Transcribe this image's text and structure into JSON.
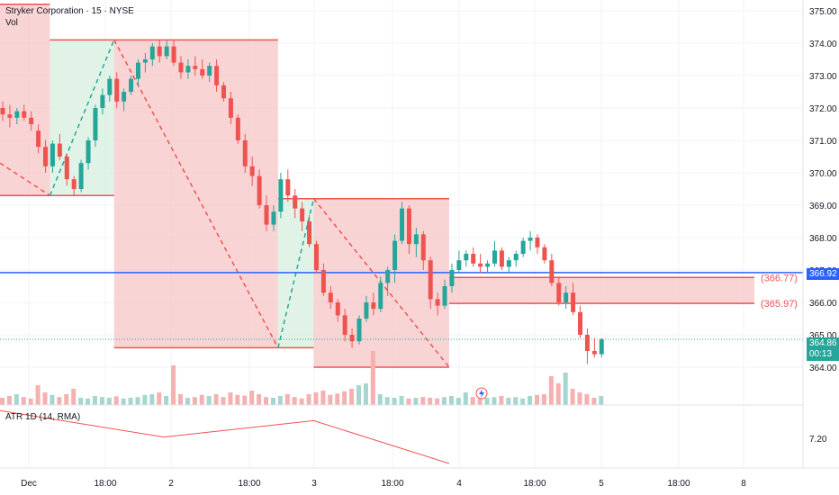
{
  "header": {
    "symbol": "Stryker Corporation",
    "interval": "15",
    "exchange": "NYSE",
    "vol_label": "Vol"
  },
  "indicator": {
    "atr_label": "ATR",
    "atr_params": "1D (14, RMA)",
    "atr_tick": "7.20"
  },
  "price_axis": {
    "ticks": [
      "375.00",
      "374.00",
      "373.00",
      "372.00",
      "371.00",
      "370.00",
      "369.00",
      "368.00",
      "367.00",
      "366.00",
      "365.00",
      "364.00"
    ],
    "current_price": "364.86",
    "countdown": "00:13",
    "hline_price": "366.92"
  },
  "time_axis": {
    "ticks": [
      "Dec",
      "18:00",
      "2",
      "18:00",
      "3",
      "18:00",
      "4",
      "18:00",
      "5",
      "18:00",
      "8"
    ]
  },
  "brackets": {
    "upper": "(366.77)",
    "lower": "(365.97)"
  },
  "colors": {
    "up": "#26a69a",
    "down": "#ef5350",
    "zone_red": "#f7c5c7",
    "zone_green": "#d6efdd",
    "hline": "#2962ff",
    "vol_up": "#a5d6cf",
    "vol_down": "#f5b0b0",
    "current_tag": "#26a69a"
  },
  "chart_data": {
    "type": "candlestick",
    "title": "Stryker Corporation · 15 · NYSE",
    "ylim": [
      363.3,
      375.2
    ],
    "series": [
      {
        "name": "price",
        "ohlc": [
          [
            372.0,
            372.2,
            371.6,
            371.8
          ],
          [
            371.8,
            372.1,
            371.4,
            371.7
          ],
          [
            371.7,
            372.0,
            371.5,
            371.9
          ],
          [
            371.9,
            372.1,
            371.6,
            371.7
          ],
          [
            371.7,
            371.9,
            371.3,
            371.5
          ],
          [
            371.3,
            371.5,
            370.6,
            370.8
          ],
          [
            370.8,
            371.0,
            370.0,
            370.2
          ],
          [
            370.2,
            371.0,
            370.0,
            370.9
          ],
          [
            370.9,
            371.2,
            370.4,
            370.5
          ],
          [
            370.5,
            370.6,
            369.6,
            369.8
          ],
          [
            369.8,
            369.9,
            369.3,
            369.5
          ],
          [
            369.5,
            370.4,
            369.4,
            370.3
          ],
          [
            370.3,
            371.1,
            370.1,
            371.0
          ],
          [
            371.0,
            372.1,
            370.8,
            372.0
          ],
          [
            372.0,
            372.6,
            371.8,
            372.4
          ],
          [
            372.4,
            373.0,
            372.2,
            372.9
          ],
          [
            372.9,
            373.1,
            372.0,
            372.2
          ],
          [
            372.2,
            372.6,
            371.9,
            372.5
          ],
          [
            372.5,
            373.0,
            372.4,
            372.9
          ],
          [
            372.9,
            373.5,
            372.7,
            373.4
          ],
          [
            373.4,
            373.7,
            373.1,
            373.5
          ],
          [
            373.5,
            374.0,
            373.3,
            373.9
          ],
          [
            373.9,
            374.1,
            373.4,
            373.6
          ],
          [
            373.6,
            374.1,
            373.5,
            373.9
          ],
          [
            373.9,
            374.1,
            373.3,
            373.4
          ],
          [
            373.4,
            373.6,
            372.9,
            373.1
          ],
          [
            373.1,
            373.5,
            372.9,
            373.3
          ],
          [
            373.3,
            373.6,
            373.0,
            373.2
          ],
          [
            373.2,
            373.5,
            372.9,
            373.0
          ],
          [
            373.0,
            373.4,
            372.8,
            373.3
          ],
          [
            373.3,
            373.5,
            372.5,
            372.7
          ],
          [
            372.7,
            372.8,
            372.2,
            372.3
          ],
          [
            372.3,
            372.5,
            371.5,
            371.7
          ],
          [
            371.7,
            371.8,
            370.9,
            371.0
          ],
          [
            371.0,
            371.2,
            370.0,
            370.2
          ],
          [
            370.2,
            370.5,
            369.6,
            369.9
          ],
          [
            369.9,
            370.1,
            368.9,
            369.0
          ],
          [
            369.0,
            369.3,
            368.2,
            368.4
          ],
          [
            368.4,
            369.0,
            368.2,
            368.8
          ],
          [
            368.8,
            370.0,
            368.6,
            369.8
          ],
          [
            369.8,
            370.1,
            369.1,
            369.3
          ],
          [
            369.3,
            369.5,
            368.6,
            368.9
          ],
          [
            368.9,
            369.1,
            368.2,
            368.5
          ],
          [
            368.5,
            368.7,
            367.7,
            367.8
          ],
          [
            367.8,
            367.9,
            366.9,
            367.0
          ],
          [
            367.0,
            367.2,
            366.2,
            366.3
          ],
          [
            366.3,
            366.5,
            365.8,
            366.0
          ],
          [
            366.0,
            366.1,
            365.4,
            365.6
          ],
          [
            365.6,
            365.8,
            364.8,
            365.0
          ],
          [
            365.0,
            365.2,
            364.6,
            364.8
          ],
          [
            364.8,
            365.6,
            364.7,
            365.5
          ],
          [
            365.5,
            366.2,
            365.4,
            366.0
          ],
          [
            366.0,
            366.3,
            365.6,
            365.8
          ],
          [
            365.8,
            366.8,
            365.7,
            366.6
          ],
          [
            366.6,
            367.1,
            366.2,
            367.0
          ],
          [
            367.0,
            368.1,
            366.6,
            367.9
          ],
          [
            367.9,
            369.1,
            367.8,
            368.9
          ],
          [
            368.9,
            369.0,
            367.5,
            367.8
          ],
          [
            367.8,
            368.3,
            367.4,
            368.1
          ],
          [
            368.1,
            368.2,
            367.0,
            367.3
          ],
          [
            367.3,
            367.4,
            365.8,
            366.1
          ],
          [
            366.1,
            366.3,
            365.6,
            365.9
          ],
          [
            365.9,
            366.7,
            365.8,
            366.5
          ],
          [
            366.5,
            367.2,
            366.3,
            367.0
          ],
          [
            367.0,
            367.6,
            366.9,
            367.3
          ],
          [
            367.3,
            367.6,
            367.1,
            367.5
          ],
          [
            367.5,
            367.7,
            367.1,
            367.2
          ],
          [
            367.2,
            367.5,
            366.9,
            367.1
          ],
          [
            367.1,
            367.3,
            366.9,
            367.2
          ],
          [
            367.2,
            367.9,
            367.1,
            367.6
          ],
          [
            367.6,
            367.7,
            367.0,
            367.1
          ],
          [
            367.1,
            367.4,
            366.9,
            367.3
          ],
          [
            367.3,
            367.6,
            367.1,
            367.5
          ],
          [
            367.5,
            368.0,
            367.4,
            367.9
          ],
          [
            367.9,
            368.2,
            367.6,
            368.0
          ],
          [
            368.0,
            368.1,
            367.5,
            367.7
          ],
          [
            367.7,
            367.8,
            367.2,
            367.3
          ],
          [
            367.3,
            367.5,
            366.5,
            366.6
          ],
          [
            366.6,
            366.8,
            365.9,
            366.0
          ],
          [
            366.0,
            366.5,
            365.8,
            366.3
          ],
          [
            366.3,
            366.6,
            365.6,
            365.7
          ],
          [
            365.7,
            365.9,
            364.9,
            365.0
          ],
          [
            365.0,
            365.2,
            364.1,
            364.5
          ],
          [
            364.5,
            364.9,
            364.3,
            364.4
          ],
          [
            364.4,
            364.9,
            364.3,
            364.86
          ]
        ]
      },
      {
        "name": "volume",
        "values": [
          0.2,
          0.25,
          0.3,
          0.22,
          0.18,
          0.55,
          0.35,
          0.28,
          0.22,
          0.3,
          0.45,
          0.2,
          0.18,
          0.25,
          0.22,
          0.2,
          0.24,
          0.18,
          0.2,
          0.22,
          0.28,
          0.3,
          0.35,
          0.25,
          1.1,
          0.3,
          0.2,
          0.22,
          0.28,
          0.25,
          0.3,
          0.22,
          0.35,
          0.28,
          0.26,
          0.4,
          0.3,
          0.22,
          0.2,
          0.25,
          0.3,
          0.22,
          0.18,
          0.3,
          0.35,
          0.4,
          0.28,
          0.32,
          0.38,
          0.45,
          0.55,
          0.6,
          1.5,
          0.3,
          0.22,
          0.2,
          0.25,
          0.18,
          0.2,
          0.22,
          0.2,
          0.18,
          0.22,
          0.25,
          0.2,
          0.35,
          0.22,
          0.18,
          0.2,
          0.22,
          0.25,
          0.2,
          0.22,
          0.18,
          0.25,
          0.28,
          0.3,
          0.8,
          0.6,
          0.9,
          0.45,
          0.35,
          0.3,
          0.2,
          0.25
        ]
      },
      {
        "name": "ATR",
        "points": [
          [
            0,
            7.42
          ],
          [
            23,
            7.21
          ],
          [
            44,
            7.34
          ],
          [
            63,
            7.0
          ]
        ]
      }
    ],
    "zones": [
      {
        "type": "short",
        "from": 0,
        "to": 7,
        "top": 375.2,
        "bottom": 369.3
      },
      {
        "type": "long",
        "from": 7,
        "to": 16,
        "top": 374.1,
        "bottom": 369.3
      },
      {
        "type": "short",
        "from": 16,
        "to": 39,
        "top": 374.1,
        "bottom": 364.6
      },
      {
        "type": "long",
        "from": 39,
        "to": 44,
        "top": 369.2,
        "bottom": 364.6
      },
      {
        "type": "short",
        "from": 44,
        "to": 63,
        "top": 369.2,
        "bottom": 364.0
      },
      {
        "type": "short",
        "from": 63,
        "to": 104,
        "top": 366.77,
        "bottom": 365.97
      }
    ],
    "dashed_lines": [
      {
        "color": "down",
        "points": [
          [
            0,
            370.3
          ],
          [
            7,
            369.3
          ]
        ]
      },
      {
        "color": "up",
        "points": [
          [
            7,
            369.3
          ],
          [
            16,
            374.1
          ]
        ]
      },
      {
        "color": "down",
        "points": [
          [
            16,
            374.1
          ],
          [
            39,
            364.6
          ]
        ]
      },
      {
        "color": "up",
        "points": [
          [
            39,
            364.6
          ],
          [
            44,
            369.2
          ]
        ]
      },
      {
        "color": "down",
        "points": [
          [
            44,
            369.2
          ],
          [
            63,
            364.0
          ]
        ]
      }
    ]
  }
}
